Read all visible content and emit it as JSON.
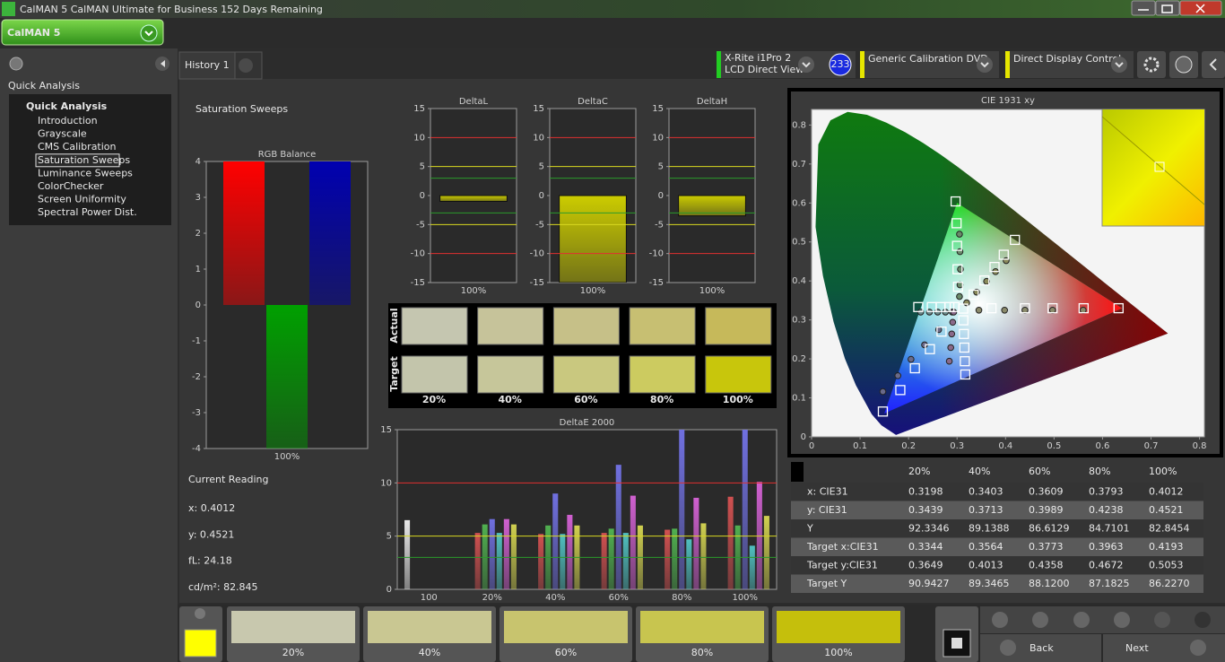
{
  "window_title": "CalMAN 5 CalMAN Ultimate for Business 152 Days Remaining",
  "app_logo": "CalMAN 5",
  "sidebar": {
    "heading": "Quick Analysis",
    "root": "Quick Analysis",
    "items": [
      "Introduction",
      "Grayscale",
      "CMS Calibration",
      "Saturation Sweeps",
      "Luminance Sweeps",
      "ColorChecker",
      "Screen Uniformity",
      "Spectral Power Dist."
    ],
    "selected": 3
  },
  "tabs": [
    "History 1"
  ],
  "devices": [
    {
      "lines": [
        "X-Rite i1Pro 2",
        "LCD Direct View"
      ],
      "badge": "233",
      "color": "#22cc22"
    },
    {
      "lines": [
        "Generic Calibration DVD"
      ],
      "color": "#e6e600"
    },
    {
      "lines": [
        "Direct Display Control"
      ],
      "color": "#e6e600"
    }
  ],
  "page_title": "Saturation Sweeps",
  "current_reading": {
    "title": "Current Reading",
    "lines": [
      "x: 0.4012",
      "y: 0.4521",
      "fL: 24.18",
      "cd/m²: 82.845"
    ]
  },
  "swatch_panel": {
    "row_labels": [
      "Actual",
      "Target"
    ],
    "columns": [
      "20%",
      "40%",
      "60%",
      "80%",
      "100%"
    ],
    "actual_colors": [
      "#c5c6b0",
      "#c6c39a",
      "#c6c088",
      "#c7bf72",
      "#c6b95a"
    ],
    "target_colors": [
      "#c3c5ab",
      "#c6c69a",
      "#c9c87f",
      "#cccb60",
      "#c8c60c"
    ]
  },
  "bottom_bar": {
    "current_color": "#ffff00",
    "labels": [
      "20%",
      "40%",
      "60%",
      "80%",
      "100%"
    ],
    "colors": [
      "#c8c8ae",
      "#c9c792",
      "#c8c46e",
      "#c8c54f",
      "#c5bf0c"
    ]
  },
  "nav": {
    "back": "Back",
    "next": "Next"
  },
  "reading_table": {
    "columns": [
      "20%",
      "40%",
      "60%",
      "80%",
      "100%"
    ],
    "rows": [
      {
        "label": "x: CIE31",
        "values": [
          "0.3198",
          "0.3403",
          "0.3609",
          "0.3793",
          "0.4012"
        ]
      },
      {
        "label": "y: CIE31",
        "values": [
          "0.3439",
          "0.3713",
          "0.3989",
          "0.4238",
          "0.4521"
        ]
      },
      {
        "label": "Y",
        "values": [
          "92.3346",
          "89.1388",
          "86.6129",
          "84.7101",
          "82.8454"
        ]
      },
      {
        "label": "Target x:CIE31",
        "values": [
          "0.3344",
          "0.3564",
          "0.3773",
          "0.3963",
          "0.4193"
        ]
      },
      {
        "label": "Target y:CIE31",
        "values": [
          "0.3649",
          "0.4013",
          "0.4358",
          "0.4672",
          "0.5053"
        ]
      },
      {
        "label": "Target Y",
        "values": [
          "90.9427",
          "89.3465",
          "88.1200",
          "87.1825",
          "86.2270"
        ]
      }
    ]
  },
  "chart_data": [
    {
      "type": "bar",
      "title": "RGB Balance",
      "categories": [
        "100%"
      ],
      "series": [
        {
          "color": "#ff0000",
          "values": [
            4
          ]
        },
        {
          "color": "#00a000",
          "values": [
            -4
          ]
        },
        {
          "color": "#0000b0",
          "values": [
            4
          ]
        }
      ],
      "ylim": [
        -4,
        4
      ],
      "yticks": [
        -4,
        -3,
        -2,
        -1,
        0,
        1,
        2,
        3,
        4
      ]
    },
    {
      "type": "bar",
      "title": "DeltaL",
      "categories": [
        "100%"
      ],
      "values": [
        -1
      ],
      "color": "#cccc00",
      "ylim": [
        -15,
        15
      ],
      "yticks": [
        -15,
        -10,
        -5,
        0,
        5,
        10,
        15
      ],
      "reference_lines": [
        {
          "value": 10,
          "color": "#e03030"
        },
        {
          "value": -10,
          "color": "#e03030"
        },
        {
          "value": 5,
          "color": "#d8d820"
        },
        {
          "value": -5,
          "color": "#d8d820"
        },
        {
          "value": 3,
          "color": "#2a9a2a"
        },
        {
          "value": -3,
          "color": "#2a9a2a"
        }
      ]
    },
    {
      "type": "bar",
      "title": "DeltaC",
      "categories": [
        "100%"
      ],
      "values": [
        -15
      ],
      "color": "#cccc00",
      "ylim": [
        -15,
        15
      ],
      "yticks": [
        -15,
        -10,
        -5,
        0,
        5,
        10,
        15
      ],
      "reference_lines": [
        {
          "value": 10,
          "color": "#e03030"
        },
        {
          "value": -10,
          "color": "#e03030"
        },
        {
          "value": 5,
          "color": "#d8d820"
        },
        {
          "value": -5,
          "color": "#d8d820"
        },
        {
          "value": 3,
          "color": "#2a9a2a"
        },
        {
          "value": -3,
          "color": "#2a9a2a"
        }
      ]
    },
    {
      "type": "bar",
      "title": "DeltaH",
      "categories": [
        "100%"
      ],
      "values": [
        -3.5
      ],
      "color": "#cccc00",
      "ylim": [
        -15,
        15
      ],
      "yticks": [
        -15,
        -10,
        -5,
        0,
        5,
        10,
        15
      ],
      "reference_lines": [
        {
          "value": 10,
          "color": "#e03030"
        },
        {
          "value": -10,
          "color": "#e03030"
        },
        {
          "value": 5,
          "color": "#d8d820"
        },
        {
          "value": -5,
          "color": "#d8d820"
        },
        {
          "value": 3,
          "color": "#2a9a2a"
        },
        {
          "value": -3,
          "color": "#2a9a2a"
        }
      ]
    },
    {
      "type": "bar",
      "title": "DeltaE 2000",
      "categories": [
        "100",
        "20%",
        "40%",
        "60%",
        "80%",
        "100%"
      ],
      "series": [
        {
          "color": "#e8e8e8",
          "values": [
            6.5,
            null,
            null,
            null,
            null,
            null
          ]
        },
        {
          "color": "#d05050",
          "values": [
            null,
            5.3,
            5.2,
            5.3,
            5.6,
            8.7
          ]
        },
        {
          "color": "#50b050",
          "values": [
            null,
            6.1,
            6.0,
            5.7,
            5.7,
            6.0
          ]
        },
        {
          "color": "#7070e0",
          "values": [
            null,
            6.6,
            9.0,
            11.7,
            15,
            15
          ]
        },
        {
          "color": "#50c0c0",
          "values": [
            null,
            5.3,
            5.2,
            5.3,
            4.7,
            4.1
          ]
        },
        {
          "color": "#d060d0",
          "values": [
            null,
            6.6,
            7.0,
            8.8,
            8.6,
            10.1
          ]
        },
        {
          "color": "#d0d050",
          "values": [
            null,
            6.1,
            6.0,
            6.0,
            6.2,
            6.9
          ]
        }
      ],
      "ylim": [
        0,
        15
      ],
      "yticks": [
        0,
        5,
        10,
        15
      ],
      "reference_lines": [
        {
          "value": 10,
          "color": "#e03030"
        },
        {
          "value": 5,
          "color": "#d8d820"
        },
        {
          "value": 3,
          "color": "#2a9a2a"
        }
      ]
    },
    {
      "type": "scatter",
      "title": "CIE 1931 xy",
      "xlim": [
        0,
        0.81
      ],
      "ylim": [
        0,
        0.84
      ],
      "xticks": [
        0,
        0.1,
        0.2,
        0.3,
        0.4,
        0.5,
        0.6,
        0.7,
        0.8
      ],
      "yticks": [
        0,
        0.1,
        0.2,
        0.3,
        0.4,
        0.5,
        0.6,
        0.7,
        0.8
      ],
      "spectral_locus": {
        "x": [
          0.1741,
          0.144,
          0.1241,
          0.0913,
          0.0687,
          0.0454,
          0.0235,
          0.0082,
          0.0139,
          0.0389,
          0.0743,
          0.1142,
          0.1547,
          0.1929,
          0.2296,
          0.2658,
          0.3016,
          0.3373,
          0.3731,
          0.4087,
          0.4441,
          0.4788,
          0.5125,
          0.5448,
          0.5752,
          0.6029,
          0.627,
          0.6482,
          0.6658,
          0.6915,
          0.7347
        ],
        "y": [
          0.005,
          0.0297,
          0.0578,
          0.1327,
          0.2007,
          0.295,
          0.4127,
          0.5384,
          0.7502,
          0.812,
          0.8338,
          0.8262,
          0.8059,
          0.7816,
          0.7543,
          0.7243,
          0.6923,
          0.6589,
          0.6245,
          0.5896,
          0.5547,
          0.5202,
          0.4866,
          0.4544,
          0.4242,
          0.3965,
          0.3725,
          0.3514,
          0.334,
          0.3083,
          0.2653
        ]
      },
      "gamut": {
        "x": [
          0.64,
          0.3,
          0.15
        ],
        "y": [
          0.33,
          0.6,
          0.06
        ]
      },
      "series": [
        {
          "marker": "circle",
          "color": "#8a8a6a",
          "x": [
            0.345,
            0.398,
            0.44,
            0.497,
            0.56
          ],
          "y": [
            0.325,
            0.325,
            0.325,
            0.325,
            0.325
          ]
        },
        {
          "marker": "circle",
          "color": "#6a8a6a",
          "x": [
            0.305,
            0.306,
            0.307,
            0.306,
            0.305
          ],
          "y": [
            0.36,
            0.39,
            0.43,
            0.475,
            0.52
          ]
        },
        {
          "marker": "circle",
          "color": "#6a6a8a",
          "x": [
            0.147,
            0.178,
            0.205,
            0.233,
            0.262
          ],
          "y": [
            0.116,
            0.157,
            0.199,
            0.236,
            0.275
          ]
        },
        {
          "marker": "circle",
          "color": "#6a8a8a",
          "x": [
            0.225,
            0.243,
            0.26,
            0.276,
            0.29
          ],
          "y": [
            0.32,
            0.32,
            0.32,
            0.32,
            0.32
          ]
        },
        {
          "marker": "circle",
          "color": "#8a6a8a",
          "x": [
            0.284,
            0.287,
            0.289,
            0.291,
            0.293
          ],
          "y": [
            0.194,
            0.229,
            0.264,
            0.294,
            0.32
          ]
        },
        {
          "marker": "circle",
          "color": "#8a8a5a",
          "x": [
            0.3198,
            0.3403,
            0.3609,
            0.3793,
            0.4012
          ],
          "y": [
            0.3439,
            0.3713,
            0.3989,
            0.4238,
            0.4521
          ]
        },
        {
          "marker": "square",
          "color": "#ffffff",
          "x": [
            0.371,
            0.44,
            0.497,
            0.561,
            0.633
          ],
          "y": [
            0.33,
            0.33,
            0.33,
            0.33,
            0.33
          ]
        },
        {
          "marker": "square",
          "color": "#ffffff",
          "x": [
            0.302,
            0.301,
            0.3,
            0.299,
            0.297
          ],
          "y": [
            0.385,
            0.43,
            0.49,
            0.548,
            0.604
          ]
        },
        {
          "marker": "square",
          "color": "#ffffff",
          "x": [
            0.147,
            0.183,
            0.213,
            0.244,
            0.268
          ],
          "y": [
            0.065,
            0.12,
            0.176,
            0.225,
            0.27
          ]
        },
        {
          "marker": "square",
          "color": "#ffffff",
          "x": [
            0.22,
            0.248,
            0.266,
            0.284,
            0.295
          ],
          "y": [
            0.333,
            0.333,
            0.333,
            0.333,
            0.333
          ]
        },
        {
          "marker": "square",
          "color": "#ffffff",
          "x": [
            0.317,
            0.316,
            0.315,
            0.314,
            0.313
          ],
          "y": [
            0.16,
            0.194,
            0.229,
            0.264,
            0.299
          ]
        },
        {
          "marker": "square",
          "color": "#ffffff",
          "x": [
            0.3344,
            0.3564,
            0.3773,
            0.3963,
            0.4193
          ],
          "y": [
            0.3649,
            0.4013,
            0.4358,
            0.4672,
            0.5053
          ]
        },
        {
          "marker": "square",
          "color": "#ffffff",
          "x": [
            0.3127
          ],
          "y": [
            0.329
          ]
        }
      ]
    }
  ]
}
